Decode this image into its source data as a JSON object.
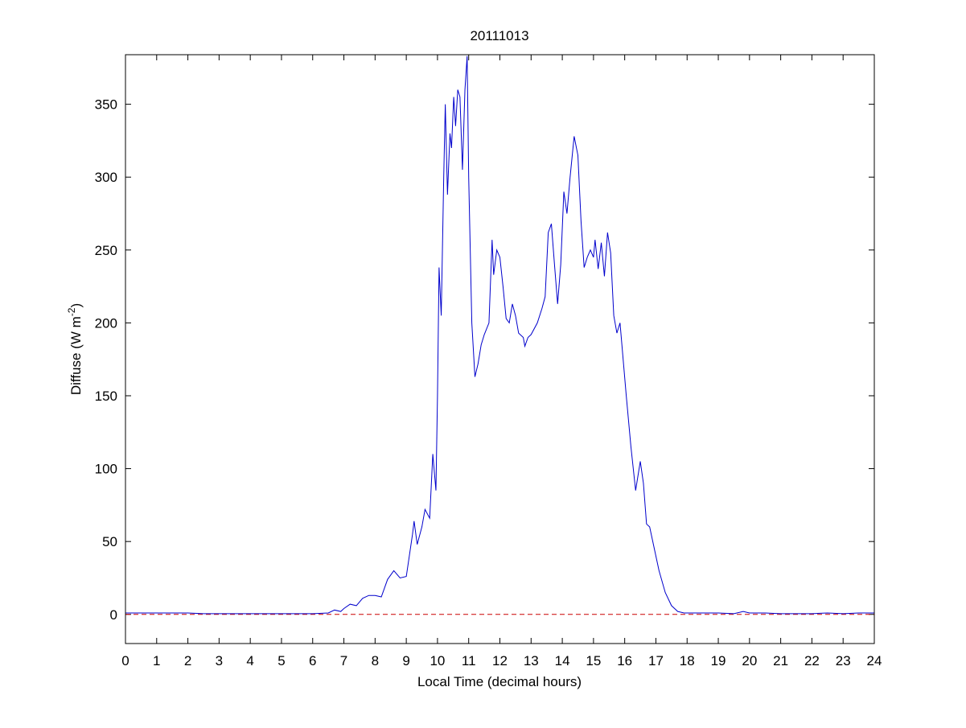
{
  "chart_data": {
    "type": "line",
    "title": "20111013",
    "xlabel": "Local Time (decimal hours)",
    "ylabel": [
      "Diffuse (W m",
      "-2",
      ")"
    ],
    "xlim": [
      0,
      24
    ],
    "xticks": [
      0,
      1,
      2,
      3,
      4,
      5,
      6,
      7,
      8,
      9,
      10,
      11,
      12,
      13,
      14,
      15,
      16,
      17,
      18,
      19,
      20,
      21,
      22,
      23,
      24
    ],
    "ylim": [
      -20,
      384
    ],
    "yticks": [
      0,
      50,
      100,
      150,
      200,
      250,
      300,
      350
    ],
    "reference_line": {
      "value": 0,
      "color": "#cc0000",
      "style": "dashed"
    },
    "series": [
      {
        "color": "#0000cc",
        "x": [
          0,
          2,
          2.5,
          3,
          4,
          5,
          6,
          6.5,
          6.7,
          6.9,
          7.0,
          7.2,
          7.4,
          7.6,
          7.8,
          8.0,
          8.2,
          8.4,
          8.6,
          8.8,
          9.0,
          9.2,
          9.25,
          9.35,
          9.5,
          9.6,
          9.75,
          9.85,
          9.95,
          10.0,
          10.05,
          10.12,
          10.2,
          10.25,
          10.32,
          10.4,
          10.45,
          10.52,
          10.58,
          10.65,
          10.72,
          10.8,
          10.88,
          10.95,
          11.0,
          11.1,
          11.2,
          11.3,
          11.4,
          11.5,
          11.65,
          11.75,
          11.8,
          11.9,
          12.0,
          12.1,
          12.2,
          12.3,
          12.4,
          12.5,
          12.6,
          12.75,
          12.8,
          12.9,
          13.0,
          13.2,
          13.35,
          13.45,
          13.55,
          13.65,
          13.75,
          13.85,
          13.95,
          14.05,
          14.15,
          14.25,
          14.38,
          14.5,
          14.6,
          14.7,
          14.8,
          14.9,
          15.0,
          15.05,
          15.15,
          15.25,
          15.35,
          15.45,
          15.55,
          15.65,
          15.75,
          15.85,
          15.95,
          16.05,
          16.2,
          16.35,
          16.5,
          16.6,
          16.7,
          16.8,
          16.95,
          17.1,
          17.3,
          17.5,
          17.7,
          17.9,
          18.5,
          19,
          19.5,
          19.8,
          20,
          20.5,
          21,
          22,
          22.5,
          23,
          23.5,
          24
        ],
        "values": [
          1,
          1,
          0.5,
          0.5,
          0.5,
          0.5,
          0.5,
          1,
          3,
          2,
          4,
          7,
          6,
          11,
          13,
          13,
          12,
          24,
          30,
          25,
          26,
          55,
          64,
          48,
          60,
          72,
          66,
          110,
          85,
          150,
          238,
          205,
          300,
          350,
          288,
          330,
          320,
          355,
          335,
          360,
          355,
          305,
          360,
          383,
          300,
          200,
          163,
          172,
          185,
          192,
          200,
          257,
          233,
          250,
          245,
          225,
          203,
          200,
          213,
          205,
          193,
          190,
          184,
          190,
          192,
          200,
          210,
          218,
          262,
          268,
          240,
          213,
          240,
          290,
          275,
          300,
          328,
          315,
          270,
          238,
          245,
          250,
          245,
          257,
          237,
          255,
          232,
          262,
          248,
          205,
          193,
          200,
          175,
          150,
          115,
          85,
          105,
          90,
          62,
          60,
          45,
          30,
          15,
          6,
          2,
          1,
          1,
          1,
          0.5,
          2,
          1,
          1,
          0.5,
          0.5,
          1,
          0.5,
          1,
          1
        ]
      }
    ]
  }
}
